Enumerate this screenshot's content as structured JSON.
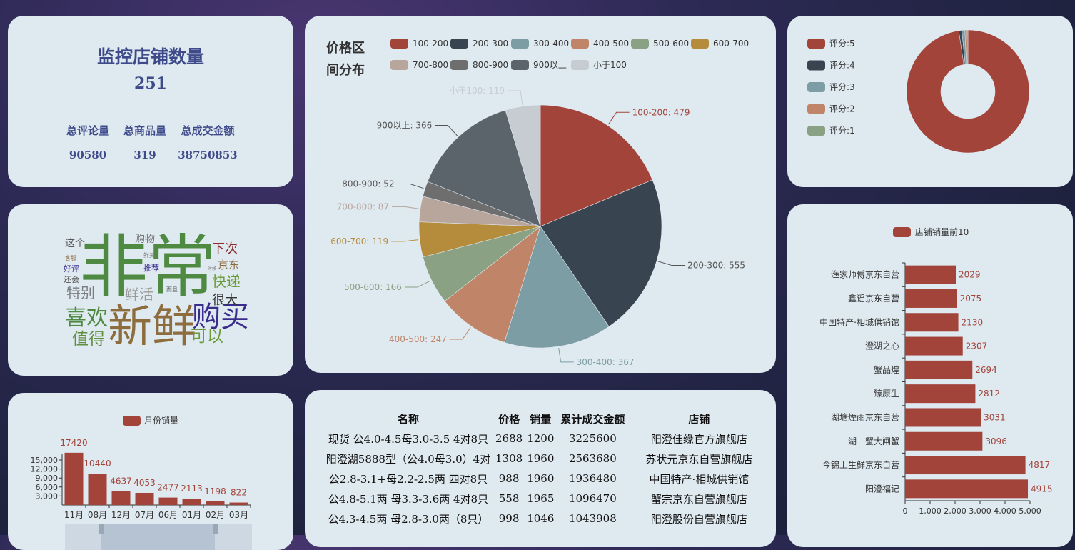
{
  "stats": {
    "title": "监控店铺数量",
    "store_count": "251",
    "labels": [
      "总评论量",
      "总商品量",
      "总成交金额"
    ],
    "values": [
      "90580",
      "319",
      "38750853"
    ]
  },
  "price_chart": {
    "title_line1": "价格区",
    "title_line2": "间分布",
    "chart_data": {
      "type": "pie",
      "title": "价格区间分布",
      "categories": [
        "100-200",
        "200-300",
        "300-400",
        "400-500",
        "500-600",
        "600-700",
        "700-800",
        "800-900",
        "900以上",
        "小于100"
      ],
      "values": [
        479,
        555,
        367,
        247,
        166,
        119,
        87,
        52,
        366,
        119
      ],
      "colors": [
        "#a2443a",
        "#394451",
        "#7d9da5",
        "#c08568",
        "#8aa183",
        "#b58c3c",
        "#b8a59c",
        "#6e6e6e",
        "#5b646b",
        "#c7cbd2"
      ],
      "legend_position": "top"
    }
  },
  "rating_chart": {
    "chart_data": {
      "type": "pie",
      "categories": [
        "评分:5",
        "评分:4",
        "评分:3",
        "评分:2",
        "评分:1"
      ],
      "values": [
        245,
        2,
        2,
        1,
        1
      ],
      "colors": [
        "#a2443a",
        "#394451",
        "#7d9da5",
        "#c08568",
        "#8aa183"
      ],
      "legend_position": "left"
    }
  },
  "word_cloud": {
    "words": [
      {
        "text": "非常",
        "color": "#4f8a43"
      },
      {
        "text": "新鲜",
        "color": "#8d6c3d"
      },
      {
        "text": "购买",
        "color": "#3a2d8c"
      },
      {
        "text": "喜欢",
        "color": "#4f8a43"
      },
      {
        "text": "值得",
        "color": "#5f8f3e"
      },
      {
        "text": "可以",
        "color": "#6a9a3a"
      },
      {
        "text": "特别",
        "color": "#7a7d83"
      },
      {
        "text": "鲜活",
        "color": "#9a9a9a"
      },
      {
        "text": "快递",
        "color": "#6a9a3a"
      },
      {
        "text": "很大",
        "color": "#333333"
      },
      {
        "text": "下次",
        "color": "#8b2e2e"
      },
      {
        "text": "京东",
        "color": "#8d6c3d"
      },
      {
        "text": "这个",
        "color": "#555555"
      },
      {
        "text": "购物",
        "color": "#777777"
      },
      {
        "text": "好评",
        "color": "#3a2d8c"
      },
      {
        "text": "推荐",
        "color": "#3a2d8c"
      },
      {
        "text": "还会",
        "color": "#555555"
      },
      {
        "text": "客服",
        "color": "#8d6c3d"
      },
      {
        "text": "鲜美",
        "color": "#777777"
      },
      {
        "text": "而且",
        "color": "#555555"
      },
      {
        "text": "时候",
        "color": "#777777"
      }
    ]
  },
  "top10_chart": {
    "legend": "店铺销量前10",
    "chart_data": {
      "type": "bar",
      "orientation": "horizontal",
      "series": [
        {
          "name": "店铺销量前10",
          "values": [
            2029,
            2075,
            2130,
            2307,
            2694,
            2812,
            3031,
            3096,
            4817,
            4915
          ]
        }
      ],
      "categories": [
        "渔家师傅京东自营",
        "鑫谣京东自营",
        "中国特产·相城供销馆",
        "澄湖之心",
        "蟹品煌",
        "臻原生",
        "湖塘煙雨京东自营",
        "一湖一蟹大闸蟹",
        "今锦上生鲜京东自营",
        "阳澄福记"
      ],
      "x_ticks": [
        "0",
        "1,000",
        "2,000",
        "3,000",
        "4,000",
        "5,000"
      ],
      "xlim": [
        0,
        5000
      ],
      "color": "#a2443a"
    }
  },
  "monthly_chart": {
    "legend": "月份销量",
    "chart_data": {
      "type": "bar",
      "series": [
        {
          "name": "月份销量",
          "values": [
            17420,
            10440,
            4637,
            4053,
            2477,
            2113,
            1198,
            822
          ]
        }
      ],
      "categories": [
        "11月",
        "08月",
        "12月",
        "07月",
        "06月",
        "01月",
        "02月",
        "03月"
      ],
      "y_ticks": [
        "15,000",
        "12,000",
        "9,000",
        "6,000",
        "3,000"
      ],
      "ylim": [
        0,
        18000
      ],
      "color": "#a2443a"
    }
  },
  "goods_table": {
    "headers": [
      "名称",
      "价格",
      "销量",
      "累计成交金额",
      "店铺"
    ],
    "rows": [
      [
        "现货 公4.0-4.5母3.0-3.5 4对8只",
        "2688",
        "1200",
        "3225600",
        "阳澄佳缘官方旗舰店"
      ],
      [
        "阳澄湖5888型（公4.0母3.0）4对",
        "1308",
        "1960",
        "2563680",
        "苏状元京东自营旗舰店"
      ],
      [
        "公2.8-3.1+母2.2-2.5两 四对8只",
        "988",
        "1960",
        "1936480",
        "中国特产·相城供销馆"
      ],
      [
        "公4.8-5.1两 母3.3-3.6两 4对8只",
        "558",
        "1965",
        "1096470",
        "蟹宗京东自营旗舰店"
      ],
      [
        "公4.3-4.5两 母2.8-3.0两（8只）",
        "998",
        "1046",
        "1043908",
        "阳澄股份自营旗舰店"
      ]
    ]
  }
}
